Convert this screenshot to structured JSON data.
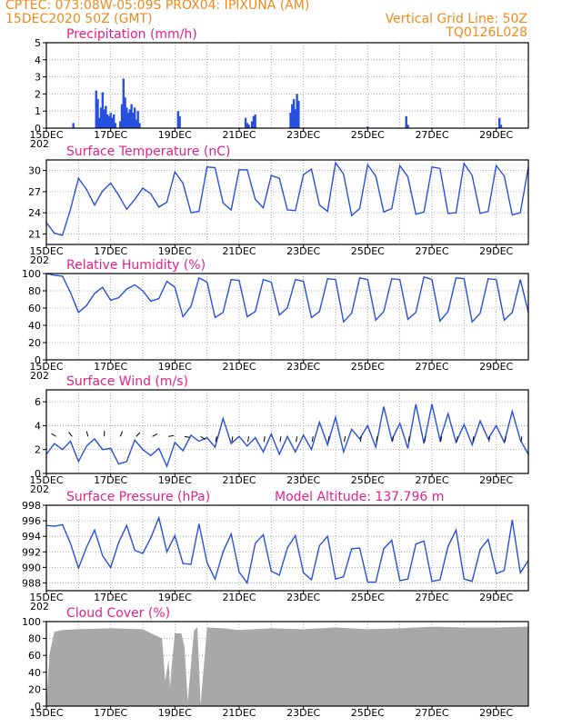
{
  "header": {
    "line1": "CPTEC:   073:08W-05:09S   PROX04: IPIXUNA (AM)",
    "line2_left": "15DEC2020 50Z (GMT)",
    "line2_right": "Vertical Grid Line: 50Z",
    "line3_right": "TQ0126L028"
  },
  "colors": {
    "header": "#f08a1a",
    "title": "#e8208a",
    "series": "#2850e0",
    "cloud": "#a8a8a8"
  },
  "x_ticks": [
    "15DEC",
    "17DEC",
    "19DEC",
    "21DEC",
    "23DEC",
    "25DEC",
    "27DEC",
    "29DEC"
  ],
  "year_fragment": "202",
  "chart_data": [
    {
      "id": "precip",
      "type": "bar",
      "title": "Precipitation (mm/h)",
      "xlabel": "",
      "ylabel": "",
      "xlim": [
        0,
        15
      ],
      "ylim": [
        0,
        5
      ],
      "yticks": [
        "0",
        "1",
        "2",
        "3",
        "4",
        "5"
      ],
      "x": [
        0.84,
        1.55,
        1.6,
        1.65,
        1.7,
        1.75,
        1.8,
        1.85,
        1.9,
        1.95,
        2.0,
        2.05,
        2.1,
        2.15,
        2.3,
        2.35,
        2.4,
        2.45,
        2.5,
        2.55,
        2.6,
        2.65,
        2.7,
        2.75,
        2.8,
        2.85,
        2.9,
        4.1,
        4.15,
        6.2,
        6.25,
        6.3,
        6.4,
        6.45,
        6.5,
        7.6,
        7.65,
        7.7,
        7.75,
        7.8,
        7.85,
        10.0,
        11.2,
        11.25,
        14.1,
        14.15
      ],
      "values": [
        0.3,
        2.2,
        1.7,
        0.6,
        1.2,
        2.1,
        1.1,
        1.3,
        0.8,
        0.7,
        0.9,
        0.6,
        0.8,
        0.3,
        0.4,
        1.4,
        2.9,
        1.8,
        1.2,
        0.9,
        1.1,
        1.4,
        0.9,
        1.2,
        0.5,
        1.0,
        0.3,
        1.0,
        0.7,
        0.6,
        0.3,
        0.2,
        0.4,
        0.7,
        0.8,
        0.9,
        1.4,
        1.7,
        1.1,
        2.0,
        1.6,
        0.1,
        0.7,
        0.2,
        0.6,
        0.2
      ]
    },
    {
      "id": "temp",
      "type": "line",
      "title": "Surface Temperature (nC)",
      "xlabel": "",
      "ylabel": "",
      "xlim": [
        0,
        15
      ],
      "ylim": [
        19.5,
        31.5
      ],
      "yticks": [
        "21",
        "24",
        "27",
        "30"
      ],
      "x": [
        0,
        0.25,
        0.5,
        0.75,
        1.0,
        1.25,
        1.5,
        1.75,
        2.0,
        2.25,
        2.5,
        2.75,
        3.0,
        3.25,
        3.5,
        3.75,
        4.0,
        4.25,
        4.5,
        4.75,
        5.0,
        5.25,
        5.5,
        5.75,
        6.0,
        6.25,
        6.5,
        6.75,
        7.0,
        7.25,
        7.5,
        7.75,
        8.0,
        8.25,
        8.5,
        8.75,
        9.0,
        9.25,
        9.5,
        9.75,
        10.0,
        10.25,
        10.5,
        10.75,
        11.0,
        11.25,
        11.5,
        11.75,
        12.0,
        12.25,
        12.5,
        12.75,
        13.0,
        13.25,
        13.5,
        13.75,
        14.0,
        14.25,
        14.5,
        14.75,
        15.0
      ],
      "values": [
        22.6,
        21.1,
        20.8,
        24.5,
        28.9,
        27.3,
        25.1,
        27.1,
        28.2,
        26.5,
        24.5,
        25.9,
        27.5,
        26.7,
        24.8,
        25.5,
        29.8,
        28.2,
        24.0,
        24.2,
        30.5,
        30.4,
        25.4,
        24.4,
        30.1,
        30.1,
        25.9,
        24.7,
        29.3,
        28.9,
        24.4,
        24.3,
        29.4,
        30.2,
        25.1,
        24.2,
        31.1,
        29.5,
        23.6,
        24.6,
        30.8,
        29.2,
        24.1,
        24.6,
        30.7,
        29.1,
        23.8,
        24.1,
        30.5,
        30.3,
        23.9,
        24.0,
        31.0,
        29.3,
        23.9,
        24.2,
        30.7,
        29.2,
        23.7,
        24.0,
        30.5
      ]
    },
    {
      "id": "rh",
      "type": "line",
      "title": "Relative Humidity (%)",
      "xlabel": "",
      "ylabel": "",
      "xlim": [
        0,
        15
      ],
      "ylim": [
        0,
        100
      ],
      "yticks": [
        "0",
        "20",
        "40",
        "60",
        "80",
        "100"
      ],
      "x": [
        0,
        0.25,
        0.5,
        0.75,
        1.0,
        1.25,
        1.5,
        1.75,
        2.0,
        2.25,
        2.5,
        2.75,
        3.0,
        3.25,
        3.5,
        3.75,
        4.0,
        4.25,
        4.5,
        4.75,
        5.0,
        5.25,
        5.5,
        5.75,
        6.0,
        6.25,
        6.5,
        6.75,
        7.0,
        7.25,
        7.5,
        7.75,
        8.0,
        8.25,
        8.5,
        8.75,
        9.0,
        9.25,
        9.5,
        9.75,
        10.0,
        10.25,
        10.5,
        10.75,
        11.0,
        11.25,
        11.5,
        11.75,
        12.0,
        12.25,
        12.5,
        12.75,
        13.0,
        13.25,
        13.5,
        13.75,
        14.0,
        14.25,
        14.5,
        14.75,
        15.0
      ],
      "values": [
        100,
        98,
        97,
        78,
        55,
        63,
        77,
        84,
        69,
        72,
        82,
        87,
        80,
        68,
        71,
        91,
        84,
        50,
        62,
        95,
        90,
        49,
        55,
        93,
        92,
        50,
        56,
        93,
        90,
        52,
        60,
        93,
        91,
        49,
        56,
        94,
        93,
        44,
        54,
        95,
        93,
        46,
        56,
        94,
        93,
        47,
        55,
        96,
        93,
        45,
        56,
        95,
        94,
        44,
        54,
        94,
        93,
        46,
        55,
        93,
        55
      ]
    },
    {
      "id": "wind",
      "type": "line",
      "title": "Surface Wind (m/s)",
      "xlabel": "",
      "ylabel": "",
      "xlim": [
        0,
        15
      ],
      "ylim": [
        0,
        7
      ],
      "yticks": [
        "0",
        "2",
        "4",
        "6"
      ],
      "x": [
        0,
        0.25,
        0.5,
        0.75,
        1.0,
        1.25,
        1.5,
        1.75,
        2.0,
        2.25,
        2.5,
        2.75,
        3.0,
        3.25,
        3.5,
        3.75,
        4.0,
        4.25,
        4.5,
        4.75,
        5.0,
        5.25,
        5.5,
        5.75,
        6.0,
        6.25,
        6.5,
        6.75,
        7.0,
        7.25,
        7.5,
        7.75,
        8.0,
        8.25,
        8.5,
        8.75,
        9.0,
        9.25,
        9.5,
        9.75,
        10.0,
        10.25,
        10.5,
        10.75,
        11.0,
        11.25,
        11.5,
        11.75,
        12.0,
        12.25,
        12.5,
        12.75,
        13.0,
        13.25,
        13.5,
        13.75,
        14.0,
        14.25,
        14.5,
        14.75,
        15.0
      ],
      "values": [
        1.6,
        2.5,
        2.0,
        2.7,
        1.0,
        2.3,
        2.9,
        2.0,
        2.1,
        0.8,
        1.0,
        2.8,
        2.0,
        1.5,
        2.1,
        0.6,
        2.6,
        1.9,
        3.2,
        2.7,
        3.0,
        2.2,
        4.6,
        2.5,
        3.1,
        2.3,
        3.0,
        1.8,
        3.3,
        1.6,
        3.1,
        1.8,
        3.2,
        2.0,
        4.3,
        2.4,
        4.7,
        1.8,
        3.7,
        2.9,
        4.0,
        2.2,
        5.6,
        2.8,
        4.2,
        2.1,
        5.8,
        2.5,
        5.8,
        2.8,
        5.0,
        2.6,
        4.1,
        2.4,
        4.4,
        2.9,
        4.0,
        2.6,
        5.2,
        2.8,
        1.6
      ]
    },
    {
      "id": "press",
      "type": "line",
      "title": "Surface Pressure (hPa)",
      "annotation": "Model Altitude: 137.796  m",
      "xlabel": "",
      "ylabel": "",
      "xlim": [
        0,
        15
      ],
      "ylim": [
        987,
        998
      ],
      "yticks": [
        "988",
        "990",
        "992",
        "994",
        "996",
        "998"
      ],
      "x": [
        0,
        0.25,
        0.5,
        0.75,
        1.0,
        1.25,
        1.5,
        1.75,
        2.0,
        2.25,
        2.5,
        2.75,
        3.0,
        3.25,
        3.5,
        3.75,
        4.0,
        4.25,
        4.5,
        4.75,
        5.0,
        5.25,
        5.5,
        5.75,
        6.0,
        6.25,
        6.5,
        6.75,
        7.0,
        7.25,
        7.5,
        7.75,
        8.0,
        8.25,
        8.5,
        8.75,
        9.0,
        9.25,
        9.5,
        9.75,
        10.0,
        10.25,
        10.5,
        10.75,
        11.0,
        11.25,
        11.5,
        11.75,
        12.0,
        12.25,
        12.5,
        12.75,
        13.0,
        13.25,
        13.5,
        13.75,
        14.0,
        14.25,
        14.5,
        14.75,
        15.0
      ],
      "values": [
        995.4,
        995.3,
        995.5,
        993.1,
        989.9,
        992.6,
        994.8,
        991.5,
        990.0,
        993.2,
        995.4,
        992.2,
        991.8,
        993.8,
        996.4,
        992.0,
        994.1,
        990.5,
        990.4,
        995.6,
        990.6,
        988.5,
        992.0,
        994.3,
        989.4,
        988.0,
        993.1,
        994.2,
        989.5,
        989.0,
        992.5,
        994.1,
        989.3,
        988.4,
        992.8,
        994.0,
        988.5,
        988.8,
        992.4,
        992.5,
        988.1,
        988.1,
        992.4,
        993.5,
        988.3,
        988.5,
        993.0,
        993.4,
        988.2,
        988.4,
        992.7,
        994.8,
        988.5,
        988.2,
        992.3,
        993.6,
        989.2,
        989.6,
        996.1,
        989.3,
        990.9
      ]
    },
    {
      "id": "cloud",
      "type": "area",
      "title": "Cloud Cover (%)",
      "xlabel": "",
      "ylabel": "",
      "xlim": [
        0,
        15
      ],
      "ylim": [
        0,
        100
      ],
      "yticks": [
        "0",
        "20",
        "40",
        "60",
        "80",
        "100"
      ],
      "x": [
        0,
        0.1,
        0.25,
        0.5,
        1.0,
        2.0,
        3.0,
        3.6,
        3.7,
        3.8,
        3.85,
        3.9,
        4.0,
        4.2,
        4.3,
        4.4,
        4.5,
        4.6,
        4.7,
        4.8,
        5.0,
        5.5,
        6.0,
        7.0,
        8.0,
        9.0,
        10.0,
        11.0,
        12.0,
        13.0,
        14.0,
        15.0
      ],
      "values": [
        3,
        62,
        88,
        90,
        91,
        92,
        91,
        80,
        30,
        55,
        22,
        48,
        86,
        86,
        70,
        5,
        50,
        90,
        93,
        2,
        93,
        92,
        90,
        92,
        91,
        93,
        91,
        92,
        94,
        93,
        93,
        94
      ]
    }
  ]
}
